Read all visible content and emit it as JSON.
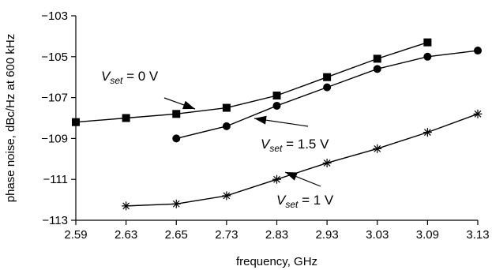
{
  "chart_data": {
    "type": "line",
    "xlabel": "frequency, GHz",
    "ylabel": "phase noise, dBc/Hz at 600 kHz",
    "x_ticks": [
      "2.59",
      "2.63",
      "2.65",
      "2.73",
      "2.83",
      "2.93",
      "3.03",
      "3.09",
      "3.13"
    ],
    "y_ticks": [
      -103,
      -105,
      -107,
      -109,
      -111,
      -113
    ],
    "ylim": [
      -113,
      -103
    ],
    "grid": false,
    "series": [
      {
        "name": "V_set = 0 V",
        "marker": "square",
        "x": [
          "2.59",
          "2.63",
          "2.65",
          "2.73",
          "2.83",
          "2.93",
          "3.03",
          "3.09"
        ],
        "values": [
          -108.2,
          -108.0,
          -107.8,
          -107.5,
          -106.9,
          -106.0,
          -105.1,
          -104.3
        ]
      },
      {
        "name": "V_set = 1.5 V",
        "marker": "circle",
        "x": [
          "2.65",
          "2.73",
          "2.83",
          "2.93",
          "3.03",
          "3.09",
          "3.13"
        ],
        "values": [
          -109.0,
          -108.4,
          -107.4,
          -106.5,
          -105.6,
          -105.0,
          -104.7
        ]
      },
      {
        "name": "V_set = 1 V",
        "marker": "asterisk",
        "x": [
          "2.63",
          "2.65",
          "2.73",
          "2.83",
          "2.93",
          "3.03",
          "3.09",
          "3.13"
        ],
        "values": [
          -112.3,
          -112.2,
          -111.8,
          -111.0,
          -110.2,
          -109.5,
          -108.7,
          -107.8
        ]
      }
    ],
    "annotations": [
      {
        "series": 0,
        "prefix": "V",
        "sub": "set",
        "suffix": " = 0 V"
      },
      {
        "series": 1,
        "prefix": "V",
        "sub": "set",
        "suffix": " = 1.5 V"
      },
      {
        "series": 2,
        "prefix": "V",
        "sub": "set",
        "suffix": " = 1 V"
      }
    ]
  }
}
